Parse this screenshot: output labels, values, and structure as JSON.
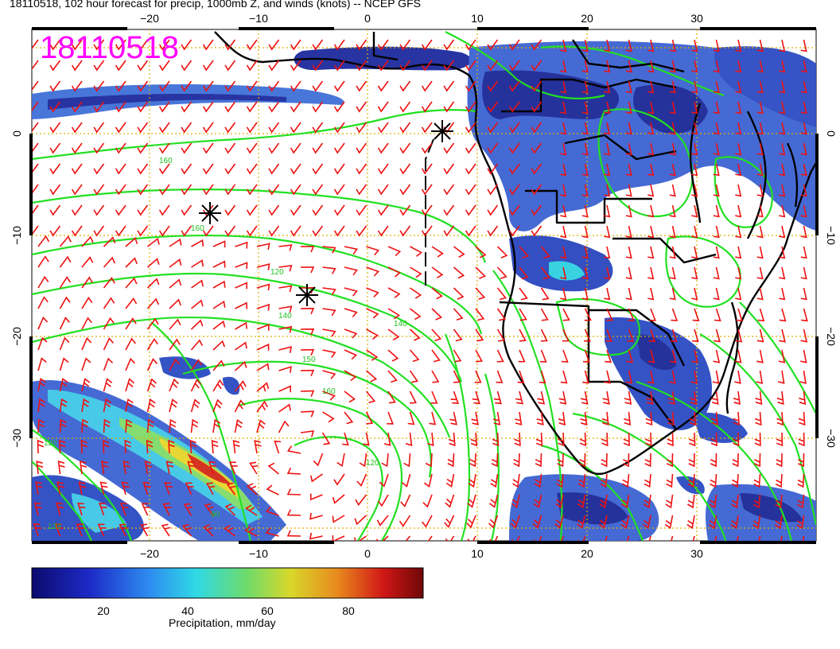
{
  "title": "18110518, 102 hour forecast for precip, 1000mb Z, and winds (knots) -- NCEP GFS",
  "stamp": "18110518",
  "lon_ticks": [
    "−20",
    "−10",
    "0",
    "10",
    "20",
    "30"
  ],
  "lat_ticks": [
    "0",
    "−10",
    "−20",
    "−30"
  ],
  "contour_labels": [
    "160",
    "160",
    "120",
    "140",
    "150",
    "160",
    "120",
    "140",
    "120",
    "80",
    "120"
  ],
  "colorbar": {
    "ticks": [
      "20",
      "40",
      "60",
      "80"
    ],
    "caption": "Precipitation, mm/day",
    "range": [
      0,
      100
    ]
  },
  "colors": {
    "precip_low": "#1a1aa0",
    "precip_mid": "#3a6ee8",
    "precip_high": "#d21e1e",
    "contour": "#22e022",
    "wind_barb": "#ee1111",
    "coast": "#000000",
    "grid": "#e0b000",
    "stamp": "#ff00ff"
  },
  "icons": [
    "high-pressure-asterisk"
  ]
}
